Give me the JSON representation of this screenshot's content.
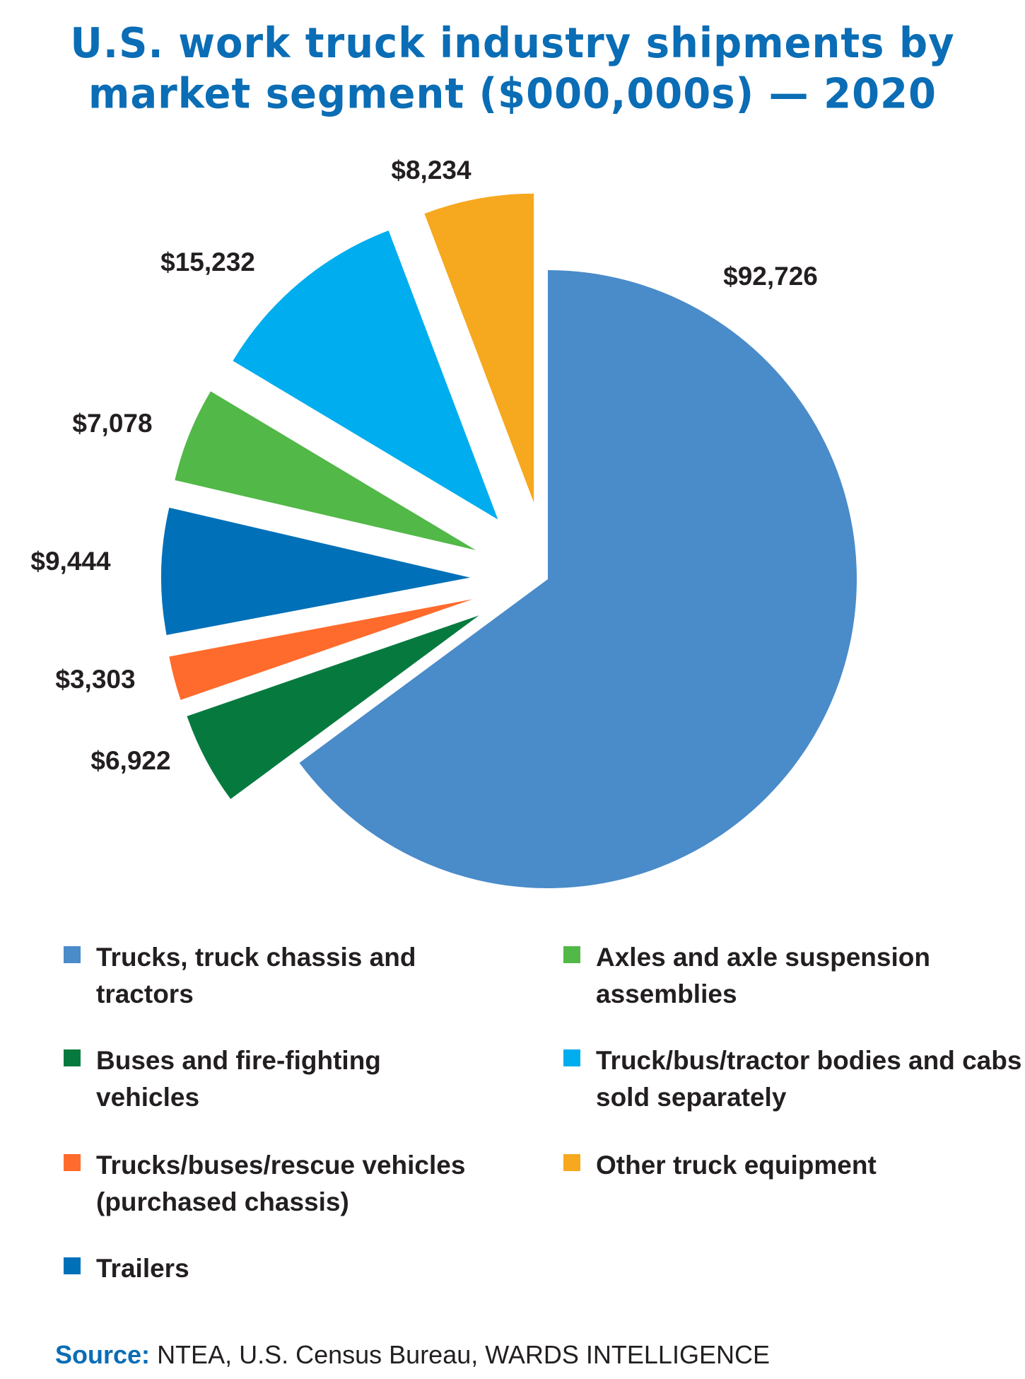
{
  "chart_data": {
    "type": "pie",
    "title": "U.S. work truck industry shipments by market segment ($000,000s) — 2020",
    "title_lines": [
      "U.S. work truck industry shipments by",
      "market segment ($000,000s) — 2020"
    ],
    "legend_position": "bottom",
    "slices": [
      {
        "name": "Trucks, truck chassis and tractors",
        "value": 92726,
        "label": "$92,726",
        "color": "#4a8bc9",
        "exploded": false
      },
      {
        "name": "Buses and fire-fighting vehicles",
        "value": 6922,
        "label": "$6,922",
        "color": "#067a3e",
        "exploded": true
      },
      {
        "name": "Trucks/buses/rescue vehicles (purchased chassis)",
        "value": 3303,
        "label": "$3,303",
        "color": "#ff6b2c",
        "exploded": true
      },
      {
        "name": "Trailers",
        "value": 9444,
        "label": "$9,444",
        "color": "#0070b8",
        "exploded": true
      },
      {
        "name": "Axles and axle suspension assemblies",
        "value": 7078,
        "label": "$7,078",
        "color": "#52b848",
        "exploded": true
      },
      {
        "name": "Truck/bus/tractor bodies and cabs sold separately",
        "value": 15232,
        "label": "$15,232",
        "color": "#00adee",
        "exploded": true
      },
      {
        "name": "Other truck equipment",
        "value": 8234,
        "label": "$8,234",
        "color": "#f6a81e",
        "exploded": true
      }
    ]
  },
  "source": {
    "label": "Source:",
    "text": "NTEA, U.S. Census Bureau, WARDS INTELLIGENCE"
  }
}
